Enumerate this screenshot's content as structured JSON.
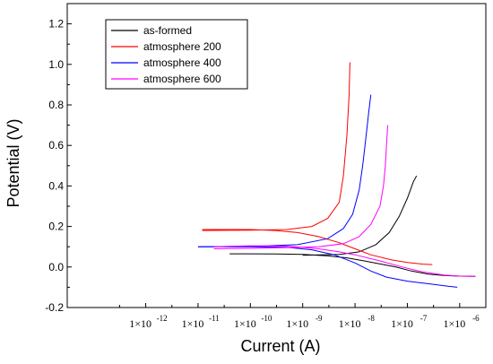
{
  "chart_data": {
    "type": "line",
    "title": "",
    "xlabel": "Current (A)",
    "ylabel": "Potential (V)",
    "xscale": "log",
    "xlim": [
      3.16e-14,
      3.16e-06
    ],
    "ylim": [
      -0.2,
      1.3
    ],
    "y_ticks": [
      "-0.2",
      "0.0",
      "0.2",
      "0.4",
      "0.6",
      "0.8",
      "1.0",
      "1.2"
    ],
    "y_tick_values": [
      -0.2,
      0.0,
      0.2,
      0.4,
      0.6,
      0.8,
      1.0,
      1.2
    ],
    "x_tick_values": [
      1e-12,
      1e-11,
      1e-10,
      1e-09,
      1e-08,
      1e-07,
      1e-06
    ],
    "x_ticks": [
      {
        "base": "1×10",
        "exp": "-12"
      },
      {
        "base": "1×10",
        "exp": "-11"
      },
      {
        "base": "1×10",
        "exp": "-10"
      },
      {
        "base": "1×10",
        "exp": "-9"
      },
      {
        "base": "1×10",
        "exp": "-8"
      },
      {
        "base": "1×10",
        "exp": "-7"
      },
      {
        "base": "1×10",
        "exp": "-6"
      }
    ],
    "grid": false,
    "legend_position": "top-left",
    "series": [
      {
        "name": "as-formed",
        "color": "#000000",
        "segments": [
          [
            [
              4e-11,
              0.065
            ],
            [
              1e-10,
              0.065
            ],
            [
              3e-10,
              0.064
            ],
            [
              1e-09,
              0.062
            ],
            [
              3e-09,
              0.055
            ],
            [
              7e-09,
              0.045
            ],
            [
              1.5e-08,
              0.03
            ],
            [
              3e-08,
              0.015
            ],
            [
              6e-08,
              0.0
            ],
            [
              1.2e-07,
              -0.02
            ],
            [
              2.5e-07,
              -0.035
            ],
            [
              5e-07,
              -0.042
            ],
            [
              1e-06,
              -0.045
            ],
            [
              2e-06,
              -0.046
            ]
          ],
          [
            [
              1e-09,
              0.058
            ],
            [
              5e-09,
              0.062
            ],
            [
              1.2e-08,
              0.075
            ],
            [
              2.5e-08,
              0.11
            ],
            [
              4.5e-08,
              0.17
            ],
            [
              7e-08,
              0.25
            ],
            [
              1e-07,
              0.34
            ],
            [
              1.3e-07,
              0.42
            ],
            [
              1.5e-07,
              0.45
            ]
          ]
        ]
      },
      {
        "name": "atmosphere 200",
        "color": "#ff0000",
        "segments": [
          [
            [
              1.2e-11,
              0.185
            ],
            [
              1e-10,
              0.185
            ],
            [
              3e-10,
              0.18
            ],
            [
              8e-10,
              0.17
            ],
            [
              2e-09,
              0.15
            ],
            [
              5e-09,
              0.12
            ],
            [
              1e-08,
              0.09
            ],
            [
              2e-08,
              0.06
            ],
            [
              5e-08,
              0.035
            ],
            [
              1e-07,
              0.022
            ],
            [
              2e-07,
              0.014
            ],
            [
              3e-07,
              0.012
            ]
          ],
          [
            [
              1.2e-11,
              0.18
            ],
            [
              1e-10,
              0.182
            ],
            [
              5e-10,
              0.185
            ],
            [
              1.5e-09,
              0.2
            ],
            [
              3e-09,
              0.24
            ],
            [
              5e-09,
              0.32
            ],
            [
              6e-09,
              0.45
            ],
            [
              7e-09,
              0.65
            ],
            [
              7.7e-09,
              0.85
            ],
            [
              8e-09,
              1.01
            ]
          ]
        ]
      },
      {
        "name": "atmosphere 400",
        "color": "#0000ff",
        "segments": [
          [
            [
              1e-11,
              0.1
            ],
            [
              1e-10,
              0.1
            ],
            [
              5e-10,
              0.097
            ],
            [
              1.5e-09,
              0.085
            ],
            [
              4e-09,
              0.06
            ],
            [
              1e-08,
              0.02
            ],
            [
              2e-08,
              -0.02
            ],
            [
              4e-08,
              -0.05
            ],
            [
              1e-07,
              -0.07
            ],
            [
              3e-07,
              -0.085
            ],
            [
              6e-07,
              -0.095
            ],
            [
              9e-07,
              -0.1
            ]
          ],
          [
            [
              1e-11,
              0.1
            ],
            [
              1e-10,
              0.102
            ],
            [
              8e-10,
              0.11
            ],
            [
              3e-09,
              0.14
            ],
            [
              6e-09,
              0.19
            ],
            [
              9e-09,
              0.26
            ],
            [
              1.2e-08,
              0.38
            ],
            [
              1.4e-08,
              0.5
            ],
            [
              1.6e-08,
              0.63
            ],
            [
              1.8e-08,
              0.75
            ],
            [
              2e-08,
              0.85
            ]
          ]
        ]
      },
      {
        "name": "atmosphere 600",
        "color": "#ff00ff",
        "segments": [
          [
            [
              2e-11,
              0.1
            ],
            [
              1e-10,
              0.105
            ],
            [
              5e-10,
              0.103
            ],
            [
              2e-09,
              0.09
            ],
            [
              5e-09,
              0.075
            ],
            [
              1e-08,
              0.06
            ],
            [
              3e-08,
              0.03
            ],
            [
              8e-08,
              0.0
            ],
            [
              2e-07,
              -0.025
            ],
            [
              5e-07,
              -0.04
            ],
            [
              1e-06,
              -0.045
            ],
            [
              2e-06,
              -0.046
            ]
          ],
          [
            [
              2e-11,
              0.09
            ],
            [
              1e-10,
              0.092
            ],
            [
              5e-10,
              0.095
            ],
            [
              2e-09,
              0.1
            ],
            [
              6e-09,
              0.115
            ],
            [
              1.2e-08,
              0.15
            ],
            [
              2e-08,
              0.21
            ],
            [
              3e-08,
              0.3
            ],
            [
              3.5e-08,
              0.4
            ],
            [
              3.8e-08,
              0.5
            ],
            [
              4e-08,
              0.6
            ],
            [
              4.2e-08,
              0.7
            ]
          ]
        ]
      }
    ]
  }
}
